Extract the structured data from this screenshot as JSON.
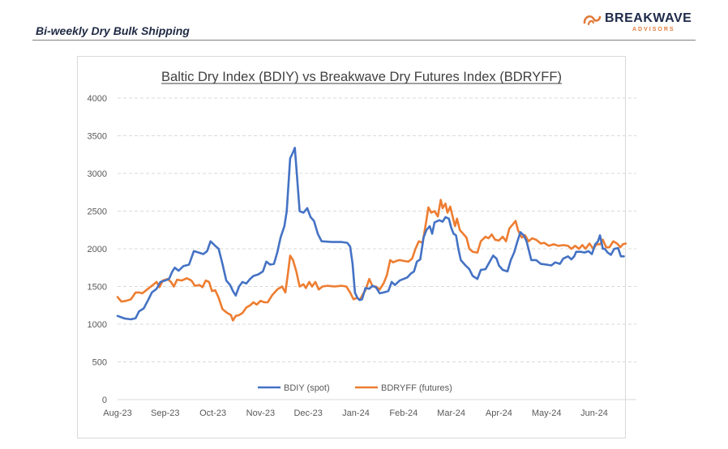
{
  "header": {
    "title": "Bi-weekly Dry Bulk Shipping",
    "brand_name": "BREAKWAVE",
    "brand_sub": "ADVISORS",
    "brand_color": "#e07b39",
    "brand_text_color": "#1e2a4a"
  },
  "chart_data": {
    "type": "line",
    "title": "Baltic Dry Index (BDIY) vs Breakwave Dry Futures Index (BDRYFF)",
    "xlabel": "",
    "ylabel": "",
    "ylim": [
      0,
      4000
    ],
    "yticks": [
      "0",
      "500",
      "1000",
      "1500",
      "2000",
      "2500",
      "3000",
      "3500",
      "4000"
    ],
    "xticks": [
      "Aug-23",
      "Sep-23",
      "Oct-23",
      "Nov-23",
      "Dec-23",
      "Jan-24",
      "Feb-24",
      "Mar-24",
      "Apr-24",
      "May-24",
      "Jun-24"
    ],
    "grid": "horizontal dashed",
    "legend_position": "bottom",
    "series": [
      {
        "name": "BDIY (spot)",
        "color": "#4472c4",
        "points": [
          [
            0.0,
            1110
          ],
          [
            0.15,
            1075
          ],
          [
            0.28,
            1065
          ],
          [
            0.38,
            1080
          ],
          [
            0.45,
            1170
          ],
          [
            0.55,
            1210
          ],
          [
            0.65,
            1330
          ],
          [
            0.72,
            1420
          ],
          [
            0.82,
            1470
          ],
          [
            0.9,
            1560
          ],
          [
            1.0,
            1580
          ],
          [
            1.08,
            1600
          ],
          [
            1.15,
            1700
          ],
          [
            1.2,
            1750
          ],
          [
            1.28,
            1710
          ],
          [
            1.38,
            1770
          ],
          [
            1.5,
            1790
          ],
          [
            1.6,
            1970
          ],
          [
            1.7,
            1950
          ],
          [
            1.8,
            1930
          ],
          [
            1.88,
            1970
          ],
          [
            1.95,
            2100
          ],
          [
            2.05,
            2040
          ],
          [
            2.12,
            2000
          ],
          [
            2.2,
            1800
          ],
          [
            2.28,
            1580
          ],
          [
            2.36,
            1520
          ],
          [
            2.42,
            1440
          ],
          [
            2.48,
            1380
          ],
          [
            2.55,
            1500
          ],
          [
            2.62,
            1560
          ],
          [
            2.7,
            1540
          ],
          [
            2.78,
            1600
          ],
          [
            2.85,
            1640
          ],
          [
            2.95,
            1660
          ],
          [
            3.05,
            1700
          ],
          [
            3.12,
            1830
          ],
          [
            3.2,
            1790
          ],
          [
            3.28,
            1800
          ],
          [
            3.35,
            1950
          ],
          [
            3.42,
            2150
          ],
          [
            3.5,
            2300
          ],
          [
            3.55,
            2500
          ],
          [
            3.62,
            3200
          ],
          [
            3.68,
            3280
          ],
          [
            3.72,
            3340
          ],
          [
            3.76,
            3000
          ],
          [
            3.82,
            2500
          ],
          [
            3.9,
            2480
          ],
          [
            3.98,
            2540
          ],
          [
            4.05,
            2420
          ],
          [
            4.12,
            2370
          ],
          [
            4.2,
            2200
          ],
          [
            4.28,
            2100
          ],
          [
            4.5,
            2090
          ],
          [
            4.7,
            2090
          ],
          [
            4.82,
            2080
          ],
          [
            4.88,
            2030
          ],
          [
            4.93,
            1800
          ],
          [
            4.98,
            1420
          ],
          [
            5.03,
            1350
          ],
          [
            5.08,
            1320
          ],
          [
            5.13,
            1330
          ],
          [
            5.2,
            1480
          ],
          [
            5.28,
            1470
          ],
          [
            5.35,
            1510
          ],
          [
            5.42,
            1490
          ],
          [
            5.5,
            1410
          ],
          [
            5.58,
            1420
          ],
          [
            5.68,
            1440
          ],
          [
            5.75,
            1560
          ],
          [
            5.82,
            1520
          ],
          [
            5.92,
            1580
          ],
          [
            6.0,
            1600
          ],
          [
            6.08,
            1620
          ],
          [
            6.15,
            1670
          ],
          [
            6.22,
            1700
          ],
          [
            6.28,
            1830
          ],
          [
            6.35,
            1860
          ],
          [
            6.42,
            2150
          ],
          [
            6.48,
            2250
          ],
          [
            6.55,
            2300
          ],
          [
            6.6,
            2200
          ],
          [
            6.65,
            2350
          ],
          [
            6.75,
            2380
          ],
          [
            6.82,
            2360
          ],
          [
            6.88,
            2420
          ],
          [
            6.95,
            2400
          ],
          [
            7.0,
            2280
          ],
          [
            7.05,
            2200
          ],
          [
            7.1,
            2180
          ],
          [
            7.15,
            2000
          ],
          [
            7.2,
            1850
          ],
          [
            7.3,
            1780
          ],
          [
            7.38,
            1730
          ],
          [
            7.45,
            1640
          ],
          [
            7.55,
            1600
          ],
          [
            7.62,
            1720
          ],
          [
            7.72,
            1730
          ],
          [
            7.8,
            1820
          ],
          [
            7.88,
            1910
          ],
          [
            7.95,
            1870
          ],
          [
            8.0,
            1780
          ],
          [
            8.08,
            1720
          ],
          [
            8.18,
            1700
          ],
          [
            8.25,
            1850
          ],
          [
            8.32,
            1950
          ],
          [
            8.38,
            2080
          ],
          [
            8.45,
            2220
          ],
          [
            8.52,
            2180
          ],
          [
            8.58,
            2100
          ],
          [
            8.62,
            2000
          ],
          [
            8.68,
            1850
          ],
          [
            8.78,
            1850
          ],
          [
            8.88,
            1800
          ],
          [
            9.0,
            1790
          ],
          [
            9.1,
            1780
          ],
          [
            9.18,
            1820
          ],
          [
            9.28,
            1800
          ],
          [
            9.35,
            1870
          ],
          [
            9.45,
            1900
          ],
          [
            9.52,
            1860
          ],
          [
            9.58,
            1900
          ],
          [
            9.62,
            1960
          ],
          [
            9.72,
            1960
          ],
          [
            9.8,
            1950
          ],
          [
            9.88,
            1970
          ],
          [
            9.95,
            1930
          ],
          [
            10.02,
            2060
          ],
          [
            10.08,
            2100
          ],
          [
            10.12,
            2180
          ],
          [
            10.18,
            2000
          ],
          [
            10.22,
            2000
          ],
          [
            10.28,
            1950
          ],
          [
            10.35,
            1920
          ],
          [
            10.42,
            2000
          ],
          [
            10.5,
            2010
          ],
          [
            10.56,
            1900
          ],
          [
            10.62,
            1900
          ]
        ]
      },
      {
        "name": "BDRYFF (futures)",
        "color": "#ed7d31",
        "points": [
          [
            0.0,
            1360
          ],
          [
            0.08,
            1300
          ],
          [
            0.18,
            1310
          ],
          [
            0.28,
            1330
          ],
          [
            0.38,
            1420
          ],
          [
            0.45,
            1420
          ],
          [
            0.52,
            1410
          ],
          [
            0.62,
            1460
          ],
          [
            0.72,
            1510
          ],
          [
            0.82,
            1560
          ],
          [
            0.88,
            1490
          ],
          [
            0.95,
            1580
          ],
          [
            1.05,
            1600
          ],
          [
            1.12,
            1560
          ],
          [
            1.18,
            1500
          ],
          [
            1.25,
            1590
          ],
          [
            1.35,
            1580
          ],
          [
            1.45,
            1610
          ],
          [
            1.55,
            1580
          ],
          [
            1.62,
            1510
          ],
          [
            1.72,
            1520
          ],
          [
            1.78,
            1490
          ],
          [
            1.85,
            1580
          ],
          [
            1.92,
            1560
          ],
          [
            1.98,
            1440
          ],
          [
            2.05,
            1450
          ],
          [
            2.12,
            1350
          ],
          [
            2.2,
            1200
          ],
          [
            2.3,
            1150
          ],
          [
            2.38,
            1120
          ],
          [
            2.42,
            1050
          ],
          [
            2.48,
            1110
          ],
          [
            2.55,
            1120
          ],
          [
            2.62,
            1150
          ],
          [
            2.7,
            1220
          ],
          [
            2.78,
            1250
          ],
          [
            2.85,
            1290
          ],
          [
            2.92,
            1260
          ],
          [
            3.0,
            1310
          ],
          [
            3.08,
            1290
          ],
          [
            3.15,
            1290
          ],
          [
            3.25,
            1390
          ],
          [
            3.35,
            1460
          ],
          [
            3.45,
            1500
          ],
          [
            3.52,
            1420
          ],
          [
            3.58,
            1700
          ],
          [
            3.62,
            1910
          ],
          [
            3.68,
            1850
          ],
          [
            3.75,
            1700
          ],
          [
            3.82,
            1500
          ],
          [
            3.9,
            1530
          ],
          [
            3.95,
            1480
          ],
          [
            4.02,
            1560
          ],
          [
            4.08,
            1500
          ],
          [
            4.15,
            1560
          ],
          [
            4.22,
            1460
          ],
          [
            4.3,
            1500
          ],
          [
            4.4,
            1510
          ],
          [
            4.55,
            1500
          ],
          [
            4.7,
            1510
          ],
          [
            4.8,
            1500
          ],
          [
            4.88,
            1420
          ],
          [
            4.95,
            1330
          ],
          [
            5.02,
            1350
          ],
          [
            5.08,
            1320
          ],
          [
            5.15,
            1400
          ],
          [
            5.2,
            1450
          ],
          [
            5.28,
            1600
          ],
          [
            5.35,
            1500
          ],
          [
            5.42,
            1500
          ],
          [
            5.5,
            1460
          ],
          [
            5.58,
            1540
          ],
          [
            5.65,
            1650
          ],
          [
            5.72,
            1850
          ],
          [
            5.78,
            1820
          ],
          [
            5.85,
            1840
          ],
          [
            5.92,
            1850
          ],
          [
            6.0,
            1840
          ],
          [
            6.1,
            1830
          ],
          [
            6.18,
            1870
          ],
          [
            6.25,
            2000
          ],
          [
            6.32,
            2100
          ],
          [
            6.4,
            2080
          ],
          [
            6.48,
            2380
          ],
          [
            6.52,
            2550
          ],
          [
            6.58,
            2480
          ],
          [
            6.65,
            2500
          ],
          [
            6.72,
            2430
          ],
          [
            6.78,
            2650
          ],
          [
            6.82,
            2540
          ],
          [
            6.88,
            2600
          ],
          [
            6.92,
            2480
          ],
          [
            6.98,
            2560
          ],
          [
            7.02,
            2450
          ],
          [
            7.08,
            2300
          ],
          [
            7.12,
            2400
          ],
          [
            7.18,
            2250
          ],
          [
            7.25,
            2200
          ],
          [
            7.32,
            2150
          ],
          [
            7.38,
            2000
          ],
          [
            7.45,
            1960
          ],
          [
            7.55,
            1950
          ],
          [
            7.62,
            2100
          ],
          [
            7.72,
            2160
          ],
          [
            7.78,
            2140
          ],
          [
            7.85,
            2190
          ],
          [
            7.92,
            2120
          ],
          [
            8.0,
            2110
          ],
          [
            8.08,
            2160
          ],
          [
            8.15,
            2100
          ],
          [
            8.22,
            2270
          ],
          [
            8.3,
            2330
          ],
          [
            8.35,
            2370
          ],
          [
            8.4,
            2250
          ],
          [
            8.48,
            2150
          ],
          [
            8.55,
            2180
          ],
          [
            8.62,
            2100
          ],
          [
            8.7,
            2140
          ],
          [
            8.78,
            2120
          ],
          [
            8.88,
            2070
          ],
          [
            8.95,
            2080
          ],
          [
            9.05,
            2040
          ],
          [
            9.15,
            2060
          ],
          [
            9.25,
            2040
          ],
          [
            9.35,
            2050
          ],
          [
            9.45,
            2040
          ],
          [
            9.52,
            2000
          ],
          [
            9.6,
            2040
          ],
          [
            9.68,
            2000
          ],
          [
            9.75,
            2050
          ],
          [
            9.82,
            2000
          ],
          [
            9.9,
            2070
          ],
          [
            9.98,
            2000
          ],
          [
            10.05,
            2060
          ],
          [
            10.12,
            2060
          ],
          [
            10.18,
            2120
          ],
          [
            10.25,
            2020
          ],
          [
            10.32,
            2020
          ],
          [
            10.4,
            2100
          ],
          [
            10.48,
            2070
          ],
          [
            10.55,
            2020
          ],
          [
            10.6,
            2060
          ],
          [
            10.66,
            2070
          ]
        ]
      }
    ]
  }
}
